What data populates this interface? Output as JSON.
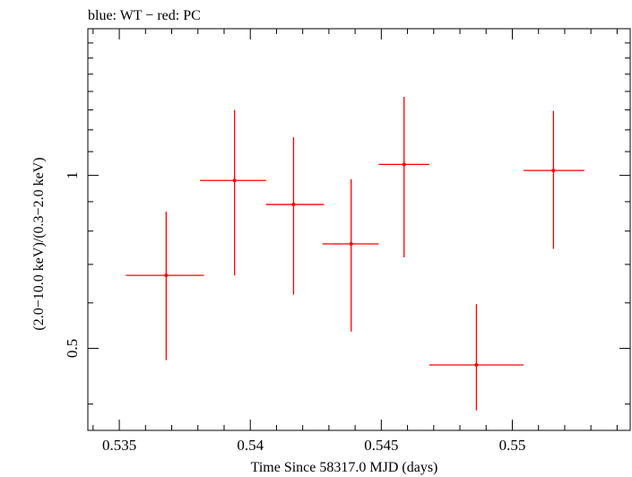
{
  "chart_data": {
    "type": "scatter",
    "title": "blue: WT − red: PC",
    "xlabel": "Time Since 58317.0 MJD (days)",
    "ylabel": "(2.0−10.0 keV)/(0.3−2.0 keV)",
    "xlim": [
      0.5338,
      0.5545
    ],
    "ylim": [
      0.36,
      1.8
    ],
    "yscale": "log",
    "x_ticks": [
      0.535,
      0.54,
      0.545,
      0.55
    ],
    "x_tick_labels": [
      "0.535",
      "0.54",
      "0.545",
      "0.55"
    ],
    "y_ticks": [
      0.5,
      1
    ],
    "y_tick_labels": [
      "0.5",
      "1"
    ],
    "series": [
      {
        "color": "#ff0000",
        "points": [
          {
            "x": 0.53679,
            "xlo": 0.53525,
            "xhi": 0.53823,
            "y": 0.67,
            "ylo": 0.477,
            "yhi": 0.865
          },
          {
            "x": 0.5394,
            "xlo": 0.53808,
            "xhi": 0.5406,
            "y": 0.98,
            "ylo": 0.67,
            "yhi": 1.3
          },
          {
            "x": 0.54165,
            "xlo": 0.5406,
            "xhi": 0.54281,
            "y": 0.89,
            "ylo": 0.62,
            "yhi": 1.165
          },
          {
            "x": 0.54385,
            "xlo": 0.54275,
            "xhi": 0.5449,
            "y": 0.76,
            "ylo": 0.535,
            "yhi": 0.985
          },
          {
            "x": 0.54587,
            "xlo": 0.5449,
            "xhi": 0.54683,
            "y": 1.045,
            "ylo": 0.72,
            "yhi": 1.37
          },
          {
            "x": 0.54863,
            "xlo": 0.54683,
            "xhi": 0.55043,
            "y": 0.468,
            "ylo": 0.39,
            "yhi": 0.597
          },
          {
            "x": 0.55157,
            "xlo": 0.55043,
            "xhi": 0.55275,
            "y": 1.02,
            "ylo": 0.745,
            "yhi": 1.295
          }
        ]
      }
    ],
    "grid": false
  }
}
